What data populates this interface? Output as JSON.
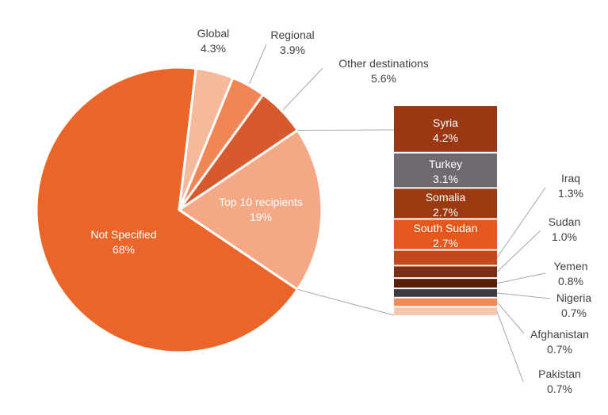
{
  "chart_data": {
    "type": "pie",
    "slices": [
      {
        "label": "Not Specified",
        "value": 68,
        "value_label": "68%",
        "color": "#ec6528"
      },
      {
        "label": "Global",
        "value": 4.3,
        "value_label": "4.3%",
        "color": "#f5b99c"
      },
      {
        "label": "Regional",
        "value": 3.9,
        "value_label": "3.9%",
        "color": "#f08656"
      },
      {
        "label": "Other destinations",
        "value": 5.6,
        "value_label": "5.6%",
        "color": "#d75a2e"
      },
      {
        "label": "Top 10 recipients",
        "value": 19,
        "value_label": "19%",
        "color": "#f5a885"
      }
    ],
    "breakdown": {
      "parent": "Top 10 recipients",
      "items": [
        {
          "label": "Syria",
          "value": 4.2,
          "value_label": "4.2%",
          "color": "#9c3714"
        },
        {
          "label": "Turkey",
          "value": 3.1,
          "value_label": "3.1%",
          "color": "#6e6a70"
        },
        {
          "label": "Somalia",
          "value": 2.7,
          "value_label": "2.7%",
          "color": "#9a3a10"
        },
        {
          "label": "South Sudan",
          "value": 2.7,
          "value_label": "2.7%",
          "color": "#e4581e"
        },
        {
          "label": "Iraq",
          "value": 1.3,
          "value_label": "1.3%",
          "color": "#c2491b"
        },
        {
          "label": "Sudan",
          "value": 1.0,
          "value_label": "1.0%",
          "color": "#7a2e14"
        },
        {
          "label": "Yemen",
          "value": 0.8,
          "value_label": "0.8%",
          "color": "#5a1e09"
        },
        {
          "label": "Nigeria",
          "value": 0.7,
          "value_label": "0.7%",
          "color": "#3d3b40"
        },
        {
          "label": "Afghanistan",
          "value": 0.7,
          "value_label": "0.7%",
          "color": "#f08a5b"
        },
        {
          "label": "Pakistan",
          "value": 0.7,
          "value_label": "0.7%",
          "color": "#f7c6ad"
        }
      ]
    }
  }
}
